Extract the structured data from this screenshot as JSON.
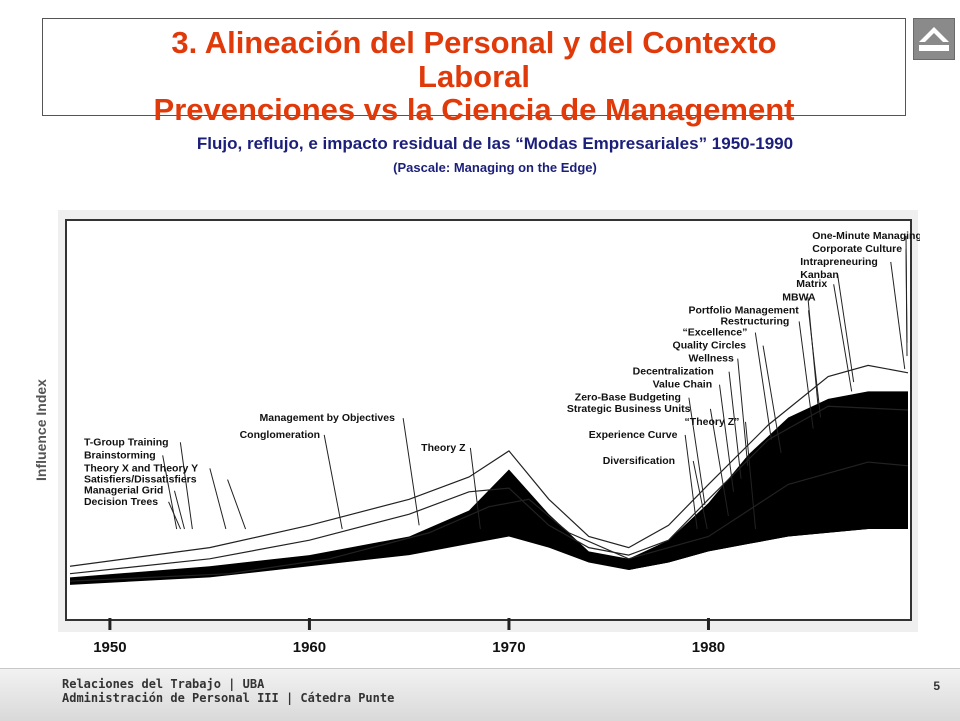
{
  "slide": {
    "title_line1": "3. Alineación del Personal y del Contexto",
    "title_line2": "Laboral",
    "title_line3": "Prevenciones vs la Ciencia de Management",
    "subtitle": "Flujo, reflujo, e impacto residual de las “Modas Empresariales”   1950-1990",
    "source": "(Pascale: Managing on the Edge)",
    "home_icon": "home-arrow-icon"
  },
  "footer": {
    "line1": "Relaciones del Trabajo | UBA",
    "line2": "Administración de Personal III | Cátedra Punte",
    "page": "5"
  },
  "colors": {
    "title": "#e03a0b",
    "subtitle": "#1b1f7a",
    "chart_fill": "#000000"
  },
  "chart_data": {
    "type": "area",
    "ylabel": "Influence Index",
    "x_ticks": [
      "1950",
      "1960",
      "1970",
      "1980"
    ],
    "xlim": [
      1948,
      1990
    ],
    "ylim": [
      0,
      10
    ],
    "labels": [
      {
        "text": "One-Minute Managing",
        "x": 1985.2,
        "y": 9.6
      },
      {
        "text": "Corporate Culture",
        "x": 1985.2,
        "y": 9.25
      },
      {
        "text": "Intrapreneuring",
        "x": 1984.6,
        "y": 8.9
      },
      {
        "text": "Kanban",
        "x": 1984.6,
        "y": 8.55
      },
      {
        "text": "Matrix",
        "x": 1984.4,
        "y": 8.3
      },
      {
        "text": "MBWA",
        "x": 1983.7,
        "y": 7.95
      },
      {
        "text": "Portfolio Management",
        "x": 1979.0,
        "y": 7.6
      },
      {
        "text": "Restructuring",
        "x": 1980.6,
        "y": 7.3
      },
      {
        "text": "“Excellence”",
        "x": 1978.7,
        "y": 7.0
      },
      {
        "text": "Quality Circles",
        "x": 1978.2,
        "y": 6.65
      },
      {
        "text": "Wellness",
        "x": 1979.0,
        "y": 6.3
      },
      {
        "text": "Decentralization",
        "x": 1976.2,
        "y": 5.95
      },
      {
        "text": "Value Chain",
        "x": 1977.2,
        "y": 5.6
      },
      {
        "text": "Zero-Base Budgeting",
        "x": 1973.3,
        "y": 5.25
      },
      {
        "text": "Strategic Business Units",
        "x": 1972.9,
        "y": 4.95
      },
      {
        "text": "“Theory Z”",
        "x": 1978.8,
        "y": 4.6
      },
      {
        "text": "Experience Curve",
        "x": 1974.0,
        "y": 4.25
      },
      {
        "text": "Diversification",
        "x": 1974.7,
        "y": 3.55
      },
      {
        "text": "Management by Objectives",
        "x": 1957.5,
        "y": 4.7
      },
      {
        "text": "Conglomeration",
        "x": 1956.5,
        "y": 4.25
      },
      {
        "text": "Theory Z",
        "x": 1965.6,
        "y": 3.9
      },
      {
        "text": "T-Group Training",
        "x": 1948.7,
        "y": 4.05
      },
      {
        "text": "Brainstorming",
        "x": 1948.7,
        "y": 3.7
      },
      {
        "text": "Theory X and Theory Y",
        "x": 1948.7,
        "y": 3.35
      },
      {
        "text": "Satisfiers/Dissatisfiers",
        "x": 1948.7,
        "y": 3.05
      },
      {
        "text": "Managerial Grid",
        "x": 1948.7,
        "y": 2.75
      },
      {
        "text": "Decision Trees",
        "x": 1948.7,
        "y": 2.45
      }
    ],
    "bands": [
      {
        "top": [
          [
            1948,
            0.5
          ],
          [
            1955,
            0.8
          ],
          [
            1960,
            1.1
          ],
          [
            1965,
            1.6
          ],
          [
            1968,
            2.3
          ],
          [
            1970,
            3.4
          ],
          [
            1972,
            2.2
          ],
          [
            1974,
            1.2
          ],
          [
            1976,
            1.0
          ],
          [
            1978,
            1.5
          ],
          [
            1980,
            2.5
          ],
          [
            1982,
            3.8
          ],
          [
            1984,
            4.8
          ],
          [
            1986,
            5.3
          ],
          [
            1988,
            5.5
          ],
          [
            1990,
            5.5
          ]
        ],
        "bottom": [
          [
            1948,
            0.3
          ],
          [
            1955,
            0.5
          ],
          [
            1960,
            0.8
          ],
          [
            1965,
            1.1
          ],
          [
            1968,
            1.4
          ],
          [
            1970,
            1.6
          ],
          [
            1972,
            1.3
          ],
          [
            1974,
            0.9
          ],
          [
            1976,
            0.7
          ],
          [
            1978,
            0.9
          ],
          [
            1980,
            1.2
          ],
          [
            1982,
            1.4
          ],
          [
            1984,
            1.6
          ],
          [
            1986,
            1.7
          ],
          [
            1988,
            1.8
          ],
          [
            1990,
            1.8
          ]
        ]
      },
      {
        "top": [
          [
            1976,
            0.9
          ],
          [
            1978,
            1.1
          ],
          [
            1980,
            1.6
          ],
          [
            1982,
            1.9
          ],
          [
            1984,
            2.1
          ],
          [
            1986,
            2.2
          ],
          [
            1988,
            2.3
          ],
          [
            1990,
            2.3
          ]
        ],
        "bottom": [
          [
            1976,
            0.7
          ],
          [
            1978,
            0.9
          ],
          [
            1980,
            1.2
          ],
          [
            1982,
            1.4
          ],
          [
            1984,
            1.6
          ],
          [
            1986,
            1.7
          ],
          [
            1988,
            1.8
          ],
          [
            1990,
            1.8
          ]
        ]
      }
    ],
    "thin_lines": [
      [
        [
          1948,
          0.8
        ],
        [
          1955,
          1.3
        ],
        [
          1960,
          1.9
        ],
        [
          1965,
          2.6
        ],
        [
          1968,
          3.2
        ],
        [
          1970,
          3.9
        ],
        [
          1972,
          2.6
        ],
        [
          1974,
          1.6
        ],
        [
          1976,
          1.3
        ],
        [
          1978,
          1.9
        ],
        [
          1980,
          3.0
        ],
        [
          1983,
          4.6
        ],
        [
          1986,
          5.9
        ],
        [
          1988,
          6.2
        ],
        [
          1990,
          6.0
        ]
      ],
      [
        [
          1948,
          0.6
        ],
        [
          1955,
          1.0
        ],
        [
          1960,
          1.5
        ],
        [
          1965,
          2.2
        ],
        [
          1968,
          2.8
        ],
        [
          1970,
          2.9
        ],
        [
          1972,
          1.9
        ],
        [
          1974,
          1.3
        ],
        [
          1976,
          1.1
        ],
        [
          1978,
          1.5
        ],
        [
          1980,
          2.6
        ],
        [
          1983,
          4.2
        ],
        [
          1986,
          5.1
        ],
        [
          1990,
          5.0
        ]
      ],
      [
        [
          1948,
          0.4
        ],
        [
          1956,
          0.6
        ],
        [
          1961,
          1.0
        ],
        [
          1966,
          1.7
        ],
        [
          1969,
          2.4
        ],
        [
          1971,
          2.6
        ],
        [
          1973,
          1.7
        ],
        [
          1976,
          1.0
        ],
        [
          1980,
          1.6
        ],
        [
          1984,
          3.0
        ],
        [
          1988,
          3.6
        ],
        [
          1990,
          3.5
        ]
      ]
    ]
  }
}
